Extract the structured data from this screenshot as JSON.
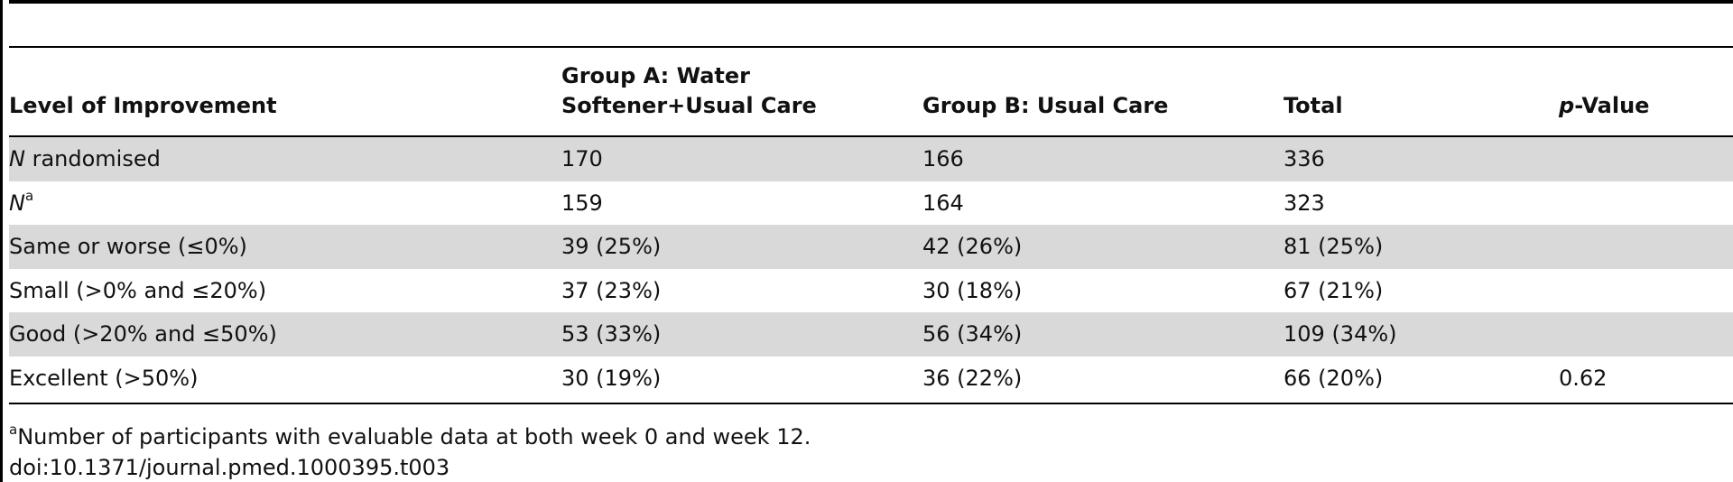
{
  "table": {
    "headers": {
      "level": "Level of Improvement",
      "group_a_line1": "Group A: Water",
      "group_a_line2": "Softener+Usual Care",
      "group_b": "Group B: Usual Care",
      "total": "Total",
      "pvalue_italic": "p",
      "pvalue_rest": "-Value"
    },
    "rows": [
      {
        "label_italic": "N",
        "label_rest": " randomised",
        "sup": "",
        "a": "170",
        "b": "166",
        "total": "336",
        "p": "",
        "shaded": true
      },
      {
        "label_italic": "N",
        "label_rest": "",
        "sup": "a",
        "a": "159",
        "b": "164",
        "total": "323",
        "p": "",
        "shaded": false
      },
      {
        "label_italic": "",
        "label_rest": "Same or worse (≤0%)",
        "sup": "",
        "a": "39 (25%)",
        "b": "42 (26%)",
        "total": "81 (25%)",
        "p": "",
        "shaded": true
      },
      {
        "label_italic": "",
        "label_rest": "Small (>0% and ≤20%)",
        "sup": "",
        "a": "37 (23%)",
        "b": "30 (18%)",
        "total": "67 (21%)",
        "p": "",
        "shaded": false
      },
      {
        "label_italic": "",
        "label_rest": "Good (>20% and ≤50%)",
        "sup": "",
        "a": "53 (33%)",
        "b": "56 (34%)",
        "total": "109 (34%)",
        "p": "",
        "shaded": true
      },
      {
        "label_italic": "",
        "label_rest": "Excellent (>50%)",
        "sup": "",
        "a": "30 (19%)",
        "b": "36 (22%)",
        "total": "66 (20%)",
        "p": "0.62",
        "shaded": false
      }
    ]
  },
  "footnote": {
    "marker": "a",
    "text": "Number of participants with evaluable data at both week 0 and week 12."
  },
  "doi": "doi:10.1371/journal.pmed.1000395.t003",
  "colors": {
    "shaded_row": "#d9d9d9",
    "rule": "#000000",
    "text": "#111111"
  }
}
